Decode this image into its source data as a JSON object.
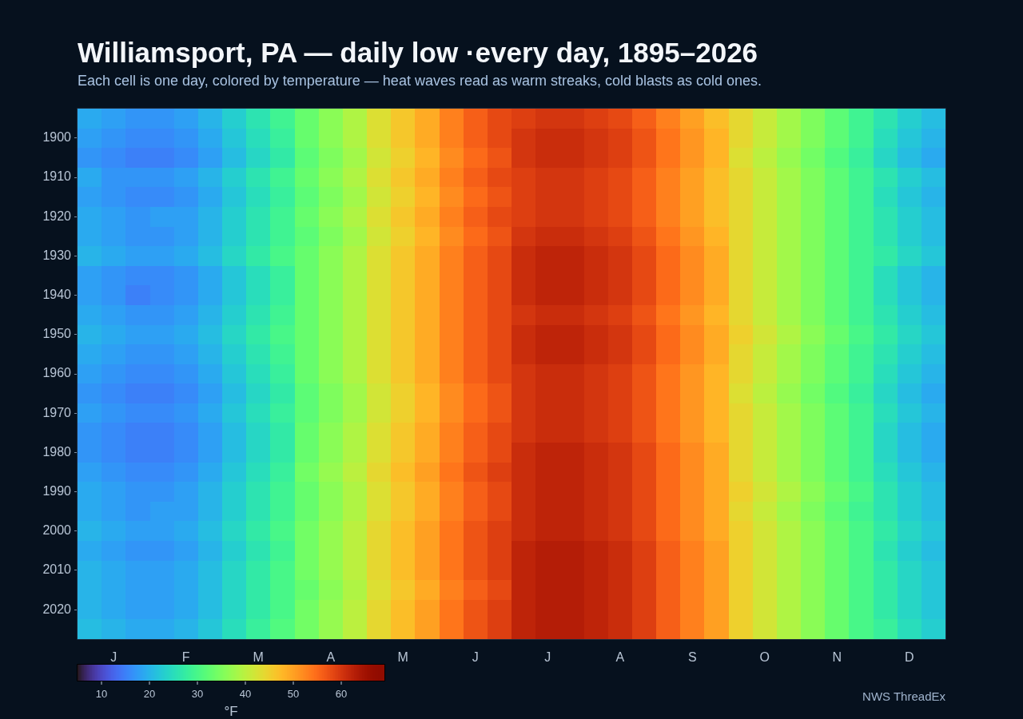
{
  "chart_data": {
    "type": "heatmap",
    "title": "Williamsport, PA — daily low ·every day, 1895–2026",
    "subtitle": "Each cell is one day, colored by temperature — heat waves read as warm streaks, cold blasts as cold ones.",
    "categories": [
      null,
      "J",
      null,
      null,
      "F",
      null,
      null,
      "M",
      null,
      null,
      "A",
      null,
      null,
      "M",
      null,
      null,
      "J",
      null,
      null,
      "J",
      null,
      null,
      "A",
      null,
      null,
      "S",
      null,
      null,
      "O",
      null,
      null,
      "N",
      null,
      null,
      "D",
      null
    ],
    "y_categories": [
      null,
      "1900",
      null,
      "1910",
      null,
      "1920",
      null,
      "1930",
      null,
      "1940",
      null,
      "1950",
      null,
      "1960",
      null,
      "1970",
      null,
      "1980",
      null,
      "1990",
      null,
      "2000",
      null,
      "2010",
      null,
      "2020",
      null
    ],
    "cells": [
      [
        19,
        18,
        17,
        17,
        18,
        20,
        23,
        26,
        29,
        33,
        36,
        39,
        43,
        46,
        49,
        53,
        56,
        58,
        59,
        60,
        60,
        59,
        58,
        56,
        53,
        50,
        47,
        44,
        41,
        38,
        35,
        32,
        29,
        26,
        23,
        21
      ],
      [
        18,
        17,
        16,
        16,
        17,
        19,
        22,
        25,
        28,
        33,
        36,
        39,
        43,
        46,
        49,
        53,
        56,
        58,
        60,
        61,
        61,
        60,
        59,
        57,
        54,
        51,
        48,
        44,
        41,
        38,
        35,
        32,
        29,
        25,
        22,
        20
      ],
      [
        17,
        16,
        15,
        15,
        16,
        18,
        21,
        24,
        27,
        32,
        35,
        38,
        42,
        45,
        48,
        52,
        55,
        57,
        60,
        61,
        61,
        60,
        59,
        57,
        54,
        51,
        48,
        43,
        40,
        37,
        34,
        31,
        28,
        24,
        21,
        19
      ],
      [
        19,
        17,
        17,
        17,
        18,
        20,
        23,
        26,
        29,
        33,
        36,
        39,
        43,
        46,
        49,
        53,
        56,
        58,
        59,
        60,
        60,
        59,
        58,
        56,
        53,
        50,
        47,
        44,
        41,
        38,
        35,
        32,
        29,
        26,
        23,
        21
      ],
      [
        18,
        17,
        16,
        16,
        17,
        19,
        22,
        25,
        28,
        32,
        35,
        38,
        42,
        45,
        48,
        52,
        55,
        57,
        59,
        60,
        60,
        59,
        58,
        56,
        53,
        50,
        47,
        44,
        41,
        38,
        35,
        32,
        29,
        25,
        22,
        20
      ],
      [
        19,
        18,
        17,
        18,
        18,
        20,
        23,
        26,
        29,
        33,
        36,
        39,
        43,
        46,
        49,
        53,
        56,
        58,
        59,
        60,
        60,
        59,
        58,
        56,
        53,
        50,
        47,
        44,
        41,
        38,
        35,
        32,
        29,
        26,
        23,
        21
      ],
      [
        19,
        18,
        17,
        17,
        18,
        20,
        23,
        26,
        29,
        32,
        35,
        38,
        42,
        45,
        48,
        52,
        55,
        57,
        60,
        61,
        61,
        60,
        59,
        57,
        54,
        51,
        48,
        44,
        41,
        38,
        35,
        32,
        29,
        26,
        23,
        21
      ],
      [
        20,
        19,
        18,
        18,
        19,
        21,
        24,
        27,
        30,
        33,
        36,
        39,
        43,
        46,
        49,
        53,
        56,
        58,
        61,
        62,
        62,
        61,
        60,
        58,
        55,
        52,
        49,
        44,
        41,
        38,
        35,
        32,
        29,
        27,
        24,
        22
      ],
      [
        18,
        17,
        16,
        16,
        17,
        19,
        22,
        25,
        28,
        33,
        36,
        39,
        43,
        46,
        49,
        53,
        56,
        58,
        61,
        62,
        62,
        61,
        60,
        58,
        55,
        52,
        49,
        44,
        41,
        38,
        35,
        32,
        29,
        25,
        22,
        20
      ],
      [
        18,
        17,
        15,
        16,
        17,
        19,
        22,
        25,
        28,
        33,
        36,
        39,
        43,
        46,
        49,
        53,
        56,
        58,
        61,
        62,
        62,
        61,
        60,
        58,
        55,
        52,
        49,
        44,
        41,
        38,
        35,
        32,
        29,
        25,
        22,
        20
      ],
      [
        19,
        18,
        17,
        17,
        18,
        20,
        23,
        26,
        29,
        33,
        36,
        39,
        43,
        46,
        49,
        53,
        56,
        58,
        60,
        61,
        61,
        60,
        59,
        57,
        54,
        51,
        48,
        44,
        41,
        38,
        35,
        32,
        29,
        26,
        23,
        21
      ],
      [
        20,
        19,
        18,
        18,
        19,
        21,
        24,
        27,
        30,
        33,
        36,
        39,
        43,
        46,
        49,
        53,
        56,
        58,
        61,
        62,
        62,
        61,
        60,
        58,
        55,
        52,
        49,
        45,
        42,
        39,
        36,
        33,
        30,
        27,
        24,
        22
      ],
      [
        19,
        18,
        17,
        17,
        18,
        20,
        23,
        26,
        29,
        33,
        36,
        39,
        43,
        46,
        49,
        53,
        56,
        58,
        61,
        62,
        62,
        61,
        60,
        58,
        55,
        52,
        49,
        44,
        41,
        38,
        35,
        32,
        29,
        26,
        23,
        21
      ],
      [
        18,
        17,
        16,
        16,
        17,
        19,
        22,
        25,
        28,
        33,
        36,
        39,
        43,
        46,
        49,
        53,
        56,
        58,
        60,
        61,
        61,
        60,
        59,
        57,
        54,
        51,
        48,
        44,
        41,
        38,
        35,
        32,
        29,
        25,
        22,
        20
      ],
      [
        17,
        16,
        15,
        15,
        16,
        18,
        21,
        24,
        27,
        32,
        35,
        38,
        42,
        45,
        48,
        52,
        55,
        57,
        60,
        61,
        61,
        60,
        59,
        57,
        54,
        51,
        48,
        43,
        40,
        37,
        34,
        31,
        28,
        24,
        21,
        19
      ],
      [
        18,
        17,
        16,
        16,
        17,
        19,
        22,
        25,
        28,
        32,
        35,
        38,
        42,
        45,
        48,
        52,
        55,
        57,
        60,
        61,
        61,
        60,
        59,
        57,
        54,
        51,
        48,
        44,
        41,
        38,
        35,
        32,
        29,
        25,
        22,
        20
      ],
      [
        17,
        16,
        15,
        15,
        16,
        18,
        21,
        24,
        27,
        33,
        36,
        39,
        43,
        46,
        49,
        53,
        56,
        58,
        60,
        61,
        61,
        60,
        59,
        57,
        54,
        51,
        48,
        44,
        41,
        38,
        35,
        32,
        29,
        24,
        21,
        19
      ],
      [
        17,
        16,
        15,
        15,
        16,
        18,
        21,
        24,
        27,
        33,
        36,
        39,
        43,
        46,
        49,
        53,
        56,
        58,
        61,
        62,
        62,
        61,
        60,
        58,
        55,
        52,
        49,
        44,
        41,
        38,
        35,
        32,
        29,
        24,
        21,
        19
      ],
      [
        18,
        17,
        16,
        16,
        17,
        19,
        22,
        25,
        28,
        34,
        37,
        40,
        44,
        47,
        50,
        54,
        57,
        59,
        61,
        62,
        62,
        61,
        60,
        58,
        55,
        52,
        49,
        44,
        41,
        38,
        35,
        32,
        29,
        25,
        22,
        20
      ],
      [
        19,
        18,
        17,
        17,
        18,
        20,
        23,
        26,
        29,
        33,
        36,
        39,
        43,
        46,
        49,
        53,
        56,
        58,
        61,
        62,
        62,
        61,
        60,
        58,
        55,
        52,
        49,
        45,
        42,
        39,
        36,
        33,
        30,
        26,
        23,
        21
      ],
      [
        19,
        18,
        17,
        18,
        18,
        20,
        23,
        26,
        29,
        33,
        36,
        39,
        43,
        46,
        49,
        53,
        56,
        58,
        61,
        62,
        62,
        61,
        60,
        58,
        55,
        52,
        49,
        44,
        41,
        38,
        35,
        32,
        29,
        26,
        23,
        21
      ],
      [
        20,
        19,
        18,
        18,
        19,
        21,
        24,
        27,
        30,
        34,
        37,
        40,
        44,
        47,
        50,
        54,
        57,
        59,
        61,
        62,
        62,
        61,
        60,
        58,
        55,
        52,
        49,
        45,
        42,
        39,
        36,
        33,
        30,
        27,
        24,
        22
      ],
      [
        19,
        18,
        17,
        17,
        18,
        20,
        23,
        26,
        29,
        34,
        37,
        40,
        44,
        47,
        50,
        54,
        57,
        59,
        62,
        63,
        63,
        62,
        61,
        59,
        56,
        53,
        50,
        45,
        42,
        39,
        36,
        33,
        30,
        26,
        23,
        21
      ],
      [
        20,
        19,
        18,
        18,
        19,
        21,
        24,
        27,
        30,
        34,
        37,
        40,
        44,
        47,
        50,
        54,
        57,
        59,
        62,
        63,
        63,
        62,
        61,
        59,
        56,
        53,
        50,
        45,
        42,
        39,
        36,
        33,
        30,
        27,
        24,
        22
      ],
      [
        20,
        19,
        18,
        18,
        19,
        21,
        24,
        27,
        30,
        33,
        36,
        39,
        43,
        46,
        49,
        53,
        56,
        58,
        62,
        63,
        63,
        62,
        61,
        59,
        56,
        53,
        50,
        45,
        42,
        39,
        36,
        33,
        30,
        27,
        24,
        22
      ],
      [
        20,
        19,
        18,
        18,
        19,
        21,
        24,
        27,
        30,
        34,
        37,
        40,
        44,
        47,
        50,
        54,
        57,
        59,
        62,
        63,
        63,
        62,
        61,
        59,
        56,
        53,
        50,
        45,
        42,
        39,
        36,
        33,
        30,
        27,
        24,
        22
      ],
      [
        21,
        20,
        19,
        19,
        20,
        22,
        25,
        28,
        31,
        34,
        37,
        40,
        44,
        47,
        50,
        54,
        57,
        59,
        62,
        63,
        63,
        62,
        61,
        59,
        56,
        53,
        50,
        45,
        42,
        39,
        36,
        33,
        30,
        28,
        25,
        23
      ]
    ],
    "clim": [
      5,
      69
    ],
    "cticks": [
      10,
      20,
      30,
      40,
      50,
      60
    ],
    "clabel": "°F",
    "annotations": [
      "NWS ThreadEx"
    ]
  }
}
